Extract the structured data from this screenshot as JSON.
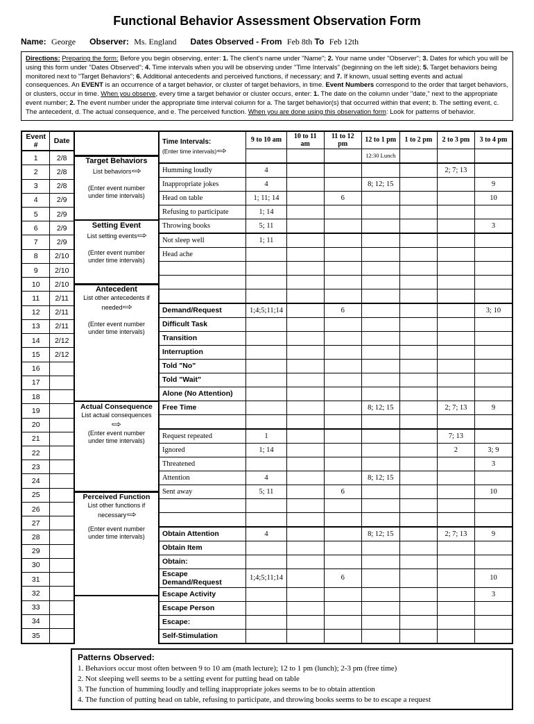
{
  "title": "Functional Behavior Assessment Observation Form",
  "header": {
    "name_label": "Name:",
    "name": "George",
    "observer_label": "Observer:",
    "observer": "Ms. England",
    "dates_label": "Dates Observed - From",
    "date_from": "Feb 8th",
    "to_label": "To",
    "date_to": "Feb 12th"
  },
  "directions_label": "Directions:",
  "event_header": {
    "event": "Event #",
    "date": "Date"
  },
  "events": [
    {
      "n": "1",
      "d": "2/8"
    },
    {
      "n": "2",
      "d": "2/8"
    },
    {
      "n": "3",
      "d": "2/8"
    },
    {
      "n": "4",
      "d": "2/9"
    },
    {
      "n": "5",
      "d": "2/9"
    },
    {
      "n": "6",
      "d": "2/9"
    },
    {
      "n": "7",
      "d": "2/9"
    },
    {
      "n": "8",
      "d": "2/10"
    },
    {
      "n": "9",
      "d": "2/10"
    },
    {
      "n": "10",
      "d": "2/10"
    },
    {
      "n": "11",
      "d": "2/11"
    },
    {
      "n": "12",
      "d": "2/11"
    },
    {
      "n": "13",
      "d": "2/11"
    },
    {
      "n": "14",
      "d": "2/12"
    },
    {
      "n": "15",
      "d": "2/12"
    },
    {
      "n": "16",
      "d": ""
    },
    {
      "n": "17",
      "d": ""
    },
    {
      "n": "18",
      "d": ""
    },
    {
      "n": "19",
      "d": ""
    },
    {
      "n": "20",
      "d": ""
    },
    {
      "n": "21",
      "d": ""
    },
    {
      "n": "22",
      "d": ""
    },
    {
      "n": "23",
      "d": ""
    },
    {
      "n": "24",
      "d": ""
    },
    {
      "n": "25",
      "d": ""
    },
    {
      "n": "26",
      "d": ""
    },
    {
      "n": "27",
      "d": ""
    },
    {
      "n": "28",
      "d": ""
    },
    {
      "n": "29",
      "d": ""
    },
    {
      "n": "30",
      "d": ""
    },
    {
      "n": "31",
      "d": ""
    },
    {
      "n": "32",
      "d": ""
    },
    {
      "n": "33",
      "d": ""
    },
    {
      "n": "34",
      "d": ""
    },
    {
      "n": "35",
      "d": ""
    }
  ],
  "meta": {
    "tb": {
      "title": "Target Behaviors",
      "sub1": "List behaviors",
      "sub2": "(Enter event number",
      "sub3": "under time intervals)"
    },
    "se": {
      "title": "Setting Event",
      "sub1": "List setting events",
      "sub2": "(Enter event number",
      "sub3": "under time intervals)"
    },
    "an": {
      "title": "Antecedent",
      "sub1": "List other antecedents if",
      "sub2": "needed",
      "sub3": "(Enter event number",
      "sub4": "under time intervals)"
    },
    "ac": {
      "title": "Actual Consequence",
      "sub1": "List actual consequences",
      "sub2": "(Enter event number",
      "sub3": "under time intervals)"
    },
    "pf": {
      "title": "Perceived Function",
      "sub1": "List other functions if",
      "sub2": "necessary",
      "sub3": "(Enter event number",
      "sub4": "under time intervals)"
    }
  },
  "time_header": {
    "title": "Time Intervals:",
    "sub": "(Enter time intervals)"
  },
  "time_cols": [
    "9 to 10 am",
    "10 to 11 am",
    "11 to 12 pm",
    "12 to 1 pm",
    "1 to 2 pm",
    "2 to 3 pm",
    "3 to 4 pm"
  ],
  "time_sub": [
    "",
    "",
    "",
    "12:30 Lunch",
    "",
    "",
    ""
  ],
  "rows_tb": [
    {
      "label": "Humming loudly",
      "hand": true,
      "c": [
        "4",
        "",
        "",
        "",
        "",
        "2; 7; 13",
        ""
      ]
    },
    {
      "label": "Inappropriate jokes",
      "hand": true,
      "c": [
        "4",
        "",
        "",
        "8; 12; 15",
        "",
        "",
        "9"
      ]
    },
    {
      "label": "Head on table",
      "hand": true,
      "c": [
        "1; 11; 14",
        "",
        "6",
        "",
        "",
        "",
        "10"
      ]
    },
    {
      "label": "Refusing to participate",
      "hand": true,
      "c": [
        "1; 14",
        "",
        "",
        "",
        "",
        "",
        ""
      ]
    },
    {
      "label": "Throwing books",
      "hand": true,
      "c": [
        "5; 11",
        "",
        "",
        "",
        "",
        "",
        "3"
      ]
    }
  ],
  "rows_se": [
    {
      "label": "Not sleep well",
      "hand": true,
      "c": [
        "1; 11",
        "",
        "",
        "",
        "",
        "",
        ""
      ]
    },
    {
      "label": "Head ache",
      "hand": true,
      "c": [
        "",
        "",
        "",
        "",
        "",
        "",
        ""
      ]
    },
    {
      "label": "",
      "c": [
        "",
        "",
        "",
        "",
        "",
        "",
        ""
      ]
    },
    {
      "label": "",
      "c": [
        "",
        "",
        "",
        "",
        "",
        "",
        ""
      ]
    },
    {
      "label": "",
      "c": [
        "",
        "",
        "",
        "",
        "",
        "",
        ""
      ]
    }
  ],
  "rows_an": [
    {
      "label": "Demand/Request",
      "c": [
        "1;4;5;11;14",
        "",
        "6",
        "",
        "",
        "",
        "3; 10"
      ]
    },
    {
      "label": "Difficult Task",
      "c": [
        "",
        "",
        "",
        "",
        "",
        "",
        ""
      ]
    },
    {
      "label": "Transition",
      "c": [
        "",
        "",
        "",
        "",
        "",
        "",
        ""
      ]
    },
    {
      "label": "Interruption",
      "c": [
        "",
        "",
        "",
        "",
        "",
        "",
        ""
      ]
    },
    {
      "label": "Told \"No\"",
      "c": [
        "",
        "",
        "",
        "",
        "",
        "",
        ""
      ]
    },
    {
      "label": "Told \"Wait\"",
      "c": [
        "",
        "",
        "",
        "",
        "",
        "",
        ""
      ]
    },
    {
      "label": "Alone (No Attention)",
      "c": [
        "",
        "",
        "",
        "",
        "",
        "",
        ""
      ]
    },
    {
      "label": "Free Time",
      "c": [
        "",
        "",
        "",
        "8; 12; 15",
        "",
        "2; 7; 13",
        "9"
      ]
    },
    {
      "label": "",
      "c": [
        "",
        "",
        "",
        "",
        "",
        "",
        ""
      ]
    }
  ],
  "rows_ac": [
    {
      "label": "Request repeated",
      "hand": true,
      "c": [
        "1",
        "",
        "",
        "",
        "",
        "7; 13",
        ""
      ]
    },
    {
      "label": "Ignored",
      "hand": true,
      "c": [
        "1; 14",
        "",
        "",
        "",
        "",
        "2",
        "3; 9"
      ]
    },
    {
      "label": "Threatened",
      "hand": true,
      "c": [
        "",
        "",
        "",
        "",
        "",
        "",
        "3"
      ]
    },
    {
      "label": "Attention",
      "hand": true,
      "c": [
        "4",
        "",
        "",
        "8; 12; 15",
        "",
        "",
        ""
      ]
    },
    {
      "label": "Sent away",
      "hand": true,
      "c": [
        "5; 11",
        "",
        "6",
        "",
        "",
        "",
        "10"
      ]
    },
    {
      "label": "",
      "c": [
        "",
        "",
        "",
        "",
        "",
        "",
        ""
      ]
    },
    {
      "label": "",
      "c": [
        "",
        "",
        "",
        "",
        "",
        "",
        ""
      ]
    }
  ],
  "rows_pf": [
    {
      "label": "Obtain Attention",
      "c": [
        "4",
        "",
        "",
        "8; 12; 15",
        "",
        "2; 7; 13",
        "9"
      ]
    },
    {
      "label": "Obtain Item",
      "c": [
        "",
        "",
        "",
        "",
        "",
        "",
        ""
      ]
    },
    {
      "label": "Obtain:",
      "c": [
        "",
        "",
        "",
        "",
        "",
        "",
        ""
      ]
    },
    {
      "label": "Escape Demand/Request",
      "c": [
        "1;4;5;11;14",
        "",
        "6",
        "",
        "",
        "",
        "10"
      ]
    },
    {
      "label": "Escape Activity",
      "c": [
        "",
        "",
        "",
        "",
        "",
        "",
        "3"
      ]
    },
    {
      "label": "Escape Person",
      "c": [
        "",
        "",
        "",
        "",
        "",
        "",
        ""
      ]
    },
    {
      "label": "Escape:",
      "c": [
        "",
        "",
        "",
        "",
        "",
        "",
        ""
      ]
    },
    {
      "label": "Self-Stimulation",
      "c": [
        "",
        "",
        "",
        "",
        "",
        "",
        ""
      ]
    }
  ],
  "patterns": {
    "title": "Patterns Observed:",
    "lines": [
      "1. Behaviors occur most often between 9 to 10 am (math lecture); 12 to 1 pm (lunch); 2-3 pm (free time)",
      "2. Not sleeping well seems to be a setting event for putting head on table",
      "3. The function of humming loudly and telling inappropriate jokes seems to be to obtain attention",
      "4. The function of putting head on table, refusing to participate, and throwing books seems to be to escape a request"
    ]
  }
}
